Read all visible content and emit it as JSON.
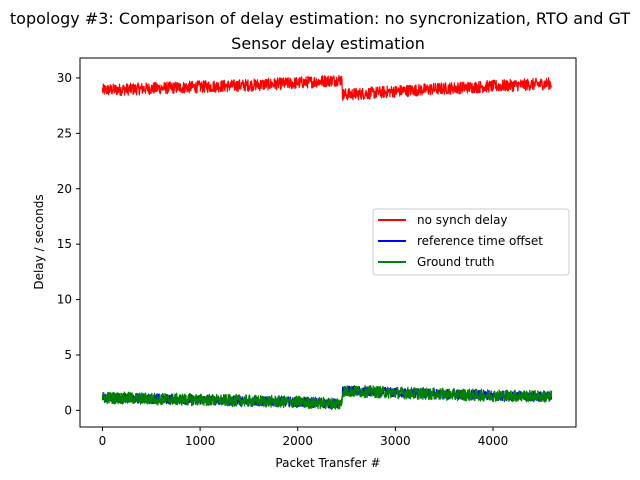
{
  "chart_data": {
    "type": "line",
    "title": "topology #3: Comparison of delay estimation: no syncronization, RTO and GT",
    "subtitle": "Sensor delay estimation",
    "xlabel": "Packet Transfer #",
    "ylabel": "Delay / seconds",
    "xlim": [
      -230,
      4850
    ],
    "ylim": [
      -1.5,
      31.8
    ],
    "xticks": [
      0,
      1000,
      2000,
      3000,
      4000
    ],
    "yticks": [
      0,
      5,
      10,
      15,
      20,
      25,
      30
    ],
    "grid": false,
    "legend_position": "center-right",
    "series": [
      {
        "name": "no synch delay",
        "color": "#ff0000",
        "x": [
          0,
          500,
          1000,
          1500,
          2000,
          2400,
          2450,
          2460,
          2700,
          3000,
          3500,
          4000,
          4600
        ],
        "y": [
          28.9,
          29.05,
          29.2,
          29.35,
          29.55,
          29.8,
          29.85,
          28.5,
          28.6,
          28.8,
          29.05,
          29.25,
          29.5
        ],
        "band": 0.55
      },
      {
        "name": "reference time offset",
        "color": "#0000ff",
        "x": [
          0,
          500,
          1000,
          1500,
          2000,
          2400,
          2450,
          2460,
          2700,
          3000,
          3500,
          4000,
          4600
        ],
        "y": [
          1.15,
          1.05,
          0.95,
          0.85,
          0.75,
          0.6,
          0.55,
          1.75,
          1.7,
          1.6,
          1.45,
          1.35,
          1.25
        ],
        "band": 0.45
      },
      {
        "name": "Ground truth",
        "color": "#008000",
        "x": [
          0,
          500,
          1000,
          1500,
          2000,
          2400,
          2450,
          2460,
          2700,
          3000,
          3500,
          4000,
          4600
        ],
        "y": [
          1.15,
          1.05,
          0.95,
          0.85,
          0.75,
          0.6,
          0.55,
          1.75,
          1.7,
          1.6,
          1.45,
          1.35,
          1.25
        ],
        "band": 0.55
      }
    ]
  }
}
